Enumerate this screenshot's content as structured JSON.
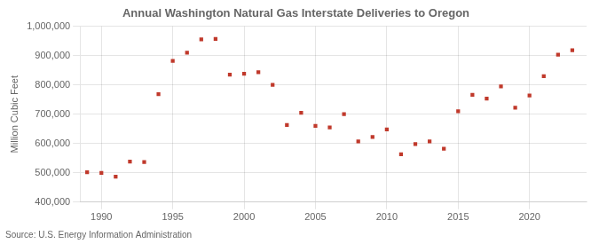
{
  "chart_data": {
    "type": "scatter",
    "title": "Annual Washington Natural Gas Interstate Deliveries to Oregon",
    "ylabel": "Million Cubic Feet",
    "annotations": [
      "Source: U.S. Energy Information Administration"
    ],
    "x": [
      1989,
      1990,
      1991,
      1992,
      1993,
      1994,
      1995,
      1996,
      1997,
      1998,
      1999,
      2000,
      2001,
      2002,
      2003,
      2004,
      2005,
      2006,
      2007,
      2008,
      2009,
      2010,
      2011,
      2012,
      2013,
      2014,
      2015,
      2016,
      2017,
      2018,
      2019,
      2020,
      2021,
      2022,
      2023
    ],
    "values": [
      502000,
      500000,
      487000,
      538000,
      537000,
      768000,
      882000,
      910000,
      955000,
      957000,
      835000,
      838000,
      843000,
      800000,
      663000,
      705000,
      660000,
      655000,
      700000,
      607000,
      622000,
      648000,
      563000,
      598000,
      607000,
      582000,
      710000,
      766000,
      753000,
      795000,
      722000,
      764000,
      830000,
      903000,
      918000
    ],
    "color": "#c0392b",
    "marker": "square",
    "xlim": [
      1988.5,
      2024
    ],
    "xticks": [
      1990,
      1995,
      2000,
      2005,
      2010,
      2015,
      2020
    ],
    "ylim": [
      400000,
      1000000
    ],
    "yticks": [
      {
        "value": 400000,
        "label": "400,000"
      },
      {
        "value": 500000,
        "label": "500,000"
      },
      {
        "value": 600000,
        "label": "600,000"
      },
      {
        "value": 700000,
        "label": "700,000"
      },
      {
        "value": 800000,
        "label": "800,000"
      },
      {
        "value": 900000,
        "label": "900,000"
      },
      {
        "value": 1000000,
        "label": "1,000,000"
      }
    ],
    "grid": true
  }
}
